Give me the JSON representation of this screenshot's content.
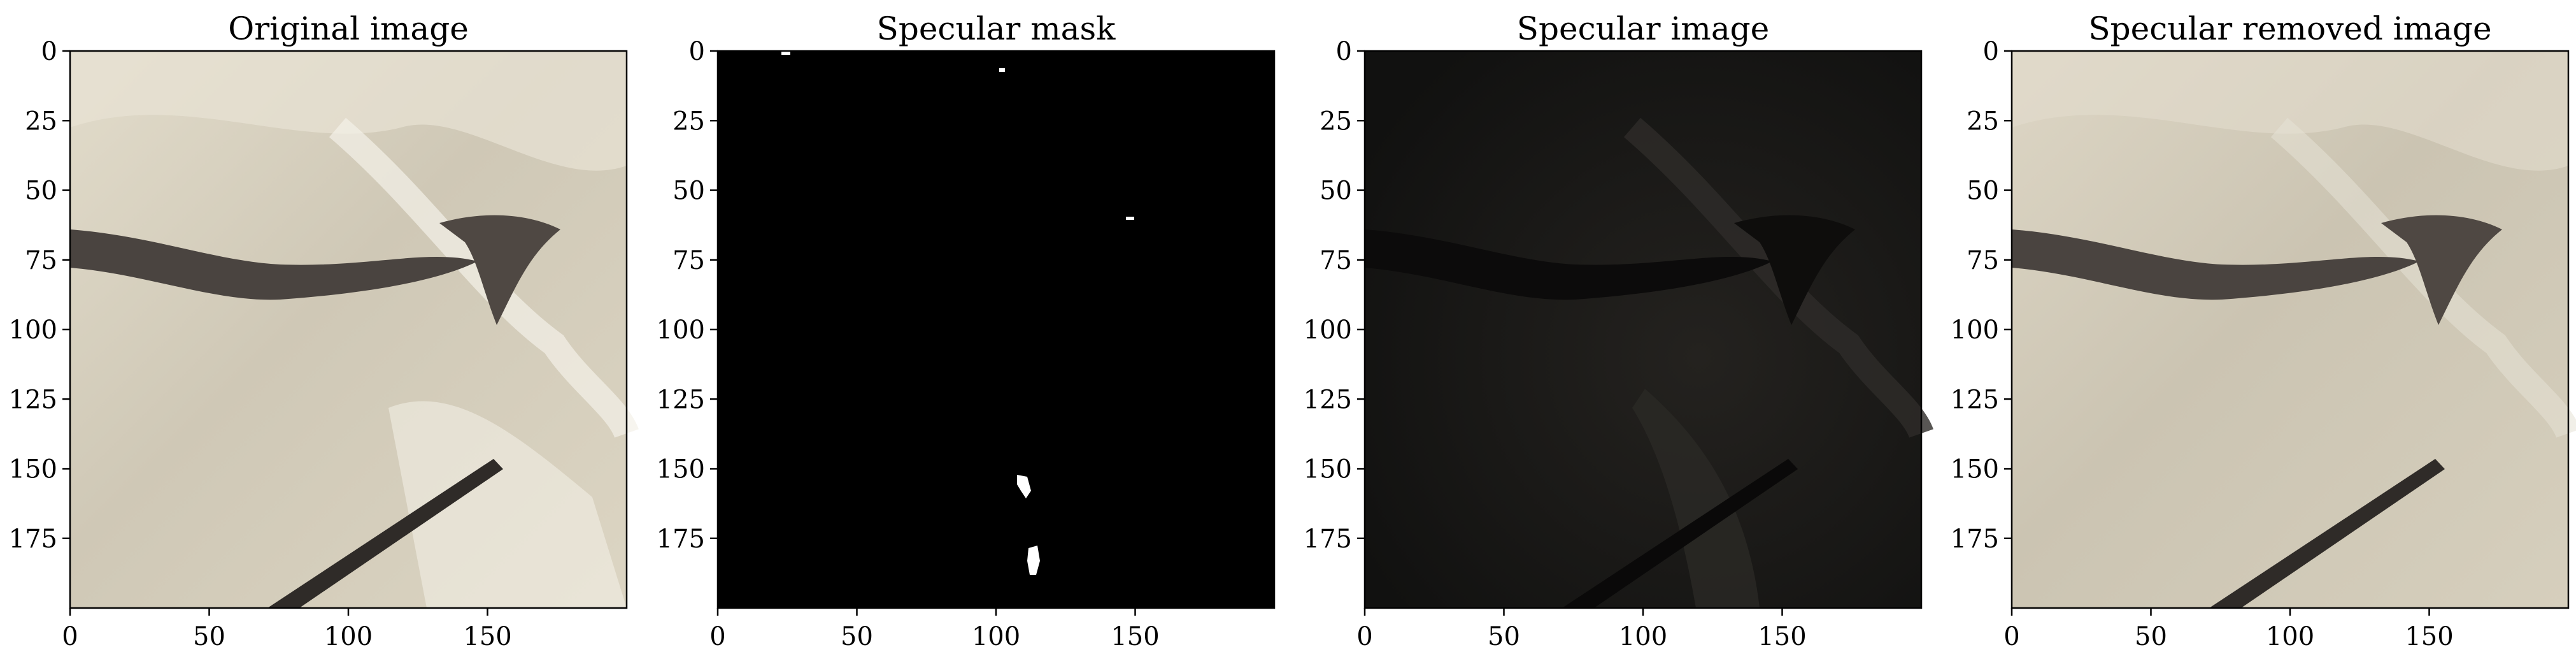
{
  "figure": {
    "panels": [
      {
        "id": "original",
        "title": "Original image",
        "x_ticks": [
          "0",
          "50",
          "100",
          "150"
        ],
        "y_ticks": [
          "0",
          "25",
          "50",
          "75",
          "100",
          "125",
          "150",
          "175"
        ],
        "image_kind": "photo-color",
        "colors": {
          "background": "#ddd6c4",
          "dark_mark": "#4a4440",
          "highlight": "#f3f0e6"
        }
      },
      {
        "id": "mask",
        "title": "Specular mask",
        "x_ticks": [
          "0",
          "50",
          "100",
          "150"
        ],
        "y_ticks": [
          "0",
          "25",
          "50",
          "75",
          "100",
          "125",
          "150",
          "175"
        ],
        "image_kind": "binary-mask",
        "colors": {
          "background": "#000000",
          "specks": "#ffffff"
        }
      },
      {
        "id": "specular",
        "title": "Specular image",
        "x_ticks": [
          "0",
          "50",
          "100",
          "150"
        ],
        "y_ticks": [
          "0",
          "25",
          "50",
          "75",
          "100",
          "125",
          "150",
          "175"
        ],
        "image_kind": "specular-dark",
        "colors": {
          "background": "#151413",
          "sheen": "#3c3a36",
          "dark_mark": "#0b0a0a"
        }
      },
      {
        "id": "removed",
        "title": "Specular removed image",
        "x_ticks": [
          "0",
          "50",
          "100",
          "150"
        ],
        "y_ticks": [
          "0",
          "25",
          "50",
          "75",
          "100",
          "125",
          "150",
          "175"
        ],
        "image_kind": "photo-color",
        "colors": {
          "background": "#d8d1bf",
          "dark_mark": "#4a4440",
          "highlight": "#ebe7dc"
        }
      }
    ],
    "axis_range": {
      "x": [
        0,
        200
      ],
      "y": [
        0,
        200
      ]
    }
  }
}
